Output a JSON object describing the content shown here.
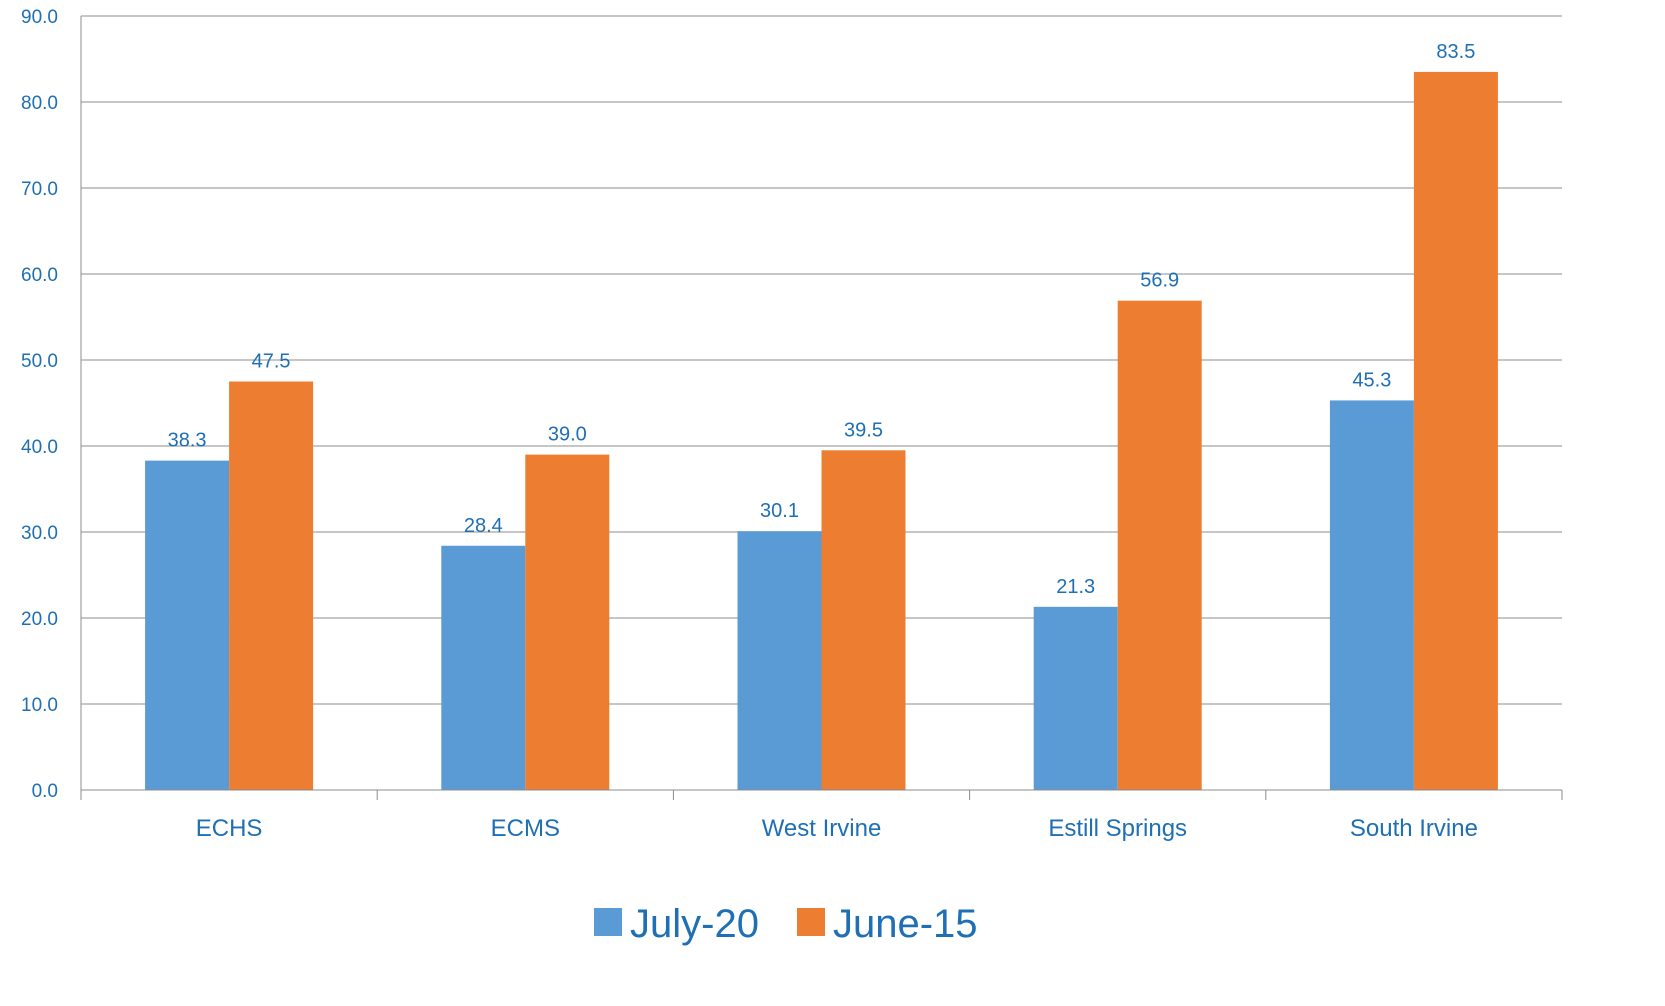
{
  "chart_data": {
    "type": "bar",
    "categories": [
      "ECHS",
      "ECMS",
      "West Irvine",
      "Estill Springs",
      "South Irvine"
    ],
    "series": [
      {
        "name": "July-20",
        "values": [
          38.3,
          28.4,
          30.1,
          21.3,
          45.3
        ],
        "color": "#5b9bd5"
      },
      {
        "name": "June-15",
        "values": [
          47.5,
          39.0,
          39.5,
          56.9,
          83.5
        ],
        "color": "#ed7d31"
      }
    ],
    "y_ticks": [
      "0.0",
      "10.0",
      "20.0",
      "30.0",
      "40.0",
      "50.0",
      "60.0",
      "70.0",
      "80.0",
      "90.0"
    ],
    "ylim": [
      0,
      90
    ],
    "ytick_step": 10,
    "grid": true,
    "legend_position": "bottom",
    "data_labels": true,
    "text_color": "#1f6fb4"
  }
}
